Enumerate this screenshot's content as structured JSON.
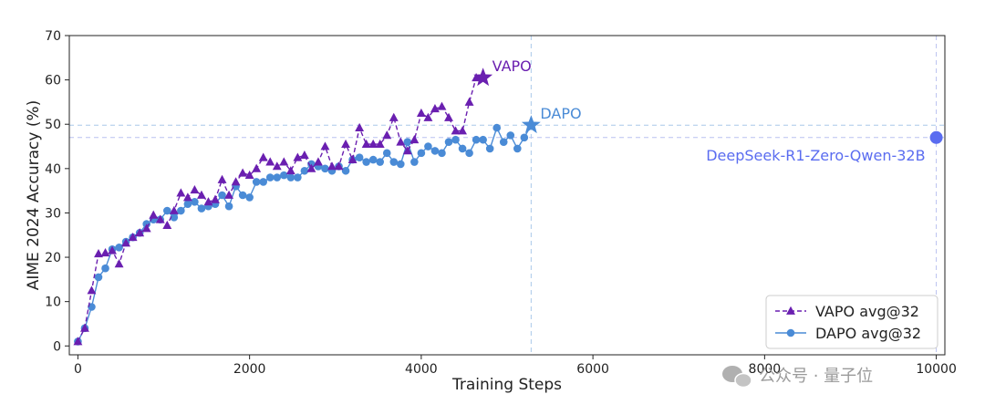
{
  "chart_data": {
    "type": "line",
    "xlabel": "Training Steps",
    "ylabel": "AIME 2024 Accuracy (%)",
    "xlim": [
      -100,
      10100
    ],
    "ylim": [
      -2,
      70
    ],
    "xticks": [
      0,
      2000,
      4000,
      6000,
      8000,
      10000
    ],
    "yticks": [
      0,
      10,
      20,
      30,
      40,
      50,
      60,
      70
    ],
    "grid": false,
    "legend_position": "bottom-right",
    "series": [
      {
        "name": "VAPO avg@32",
        "color": "#6a1fb0",
        "style": "dashed",
        "marker": "triangle",
        "x": [
          0,
          80,
          160,
          240,
          320,
          400,
          480,
          560,
          640,
          720,
          800,
          880,
          960,
          1040,
          1120,
          1200,
          1280,
          1360,
          1440,
          1520,
          1600,
          1680,
          1760,
          1840,
          1920,
          2000,
          2080,
          2160,
          2240,
          2320,
          2400,
          2480,
          2560,
          2640,
          2720,
          2800,
          2880,
          2960,
          3040,
          3120,
          3200,
          3280,
          3360,
          3440,
          3520,
          3600,
          3680,
          3760,
          3840,
          3920,
          4000,
          4080,
          4160,
          4240,
          4320,
          4400,
          4480,
          4560,
          4640,
          4720
        ],
        "y": [
          1,
          4,
          12.5,
          20.8,
          21,
          21.5,
          18.5,
          23.2,
          24.5,
          25.5,
          26.5,
          29.5,
          28.5,
          27.2,
          30.5,
          34.5,
          33.5,
          35.2,
          34,
          32.5,
          33,
          37.5,
          34,
          37,
          39,
          38.5,
          40,
          42.5,
          41.5,
          40.5,
          41.5,
          39.5,
          42.5,
          43,
          40,
          41.5,
          45,
          40.5,
          40.5,
          45.5,
          42,
          49.2,
          45.5,
          45.5,
          45.5,
          47.5,
          51.5,
          46,
          44,
          46.5,
          52.5,
          51.5,
          53.5,
          54,
          51.5,
          48.5,
          48.5,
          55,
          60.5,
          60.5
        ]
      },
      {
        "name": "DAPO avg@32",
        "color": "#4a8bd6",
        "style": "solid",
        "marker": "circle",
        "x": [
          0,
          80,
          160,
          240,
          320,
          400,
          480,
          560,
          640,
          720,
          800,
          880,
          960,
          1040,
          1120,
          1200,
          1280,
          1360,
          1440,
          1520,
          1600,
          1680,
          1760,
          1840,
          1920,
          2000,
          2080,
          2160,
          2240,
          2320,
          2400,
          2480,
          2560,
          2640,
          2720,
          2800,
          2880,
          2960,
          3040,
          3120,
          3200,
          3280,
          3360,
          3440,
          3520,
          3600,
          3680,
          3760,
          3840,
          3920,
          4000,
          4080,
          4160,
          4240,
          4320,
          4400,
          4480,
          4560,
          4640,
          4720,
          4800,
          4880,
          4960,
          5040,
          5120,
          5200,
          5280
        ],
        "y": [
          1,
          4,
          8.8,
          15.5,
          17.5,
          21.8,
          22.2,
          23.5,
          24.5,
          25.5,
          27.5,
          28.5,
          28.5,
          30.5,
          29,
          30.5,
          32,
          32.5,
          31,
          31.5,
          32,
          34,
          31.5,
          36,
          34,
          33.5,
          37,
          37,
          38,
          38,
          38.5,
          38,
          38,
          39.5,
          41,
          40.5,
          40,
          39.5,
          40.5,
          39.5,
          42,
          42.5,
          41.5,
          42,
          41.5,
          43.5,
          41.5,
          41,
          46,
          41.5,
          43.5,
          45,
          44,
          43.5,
          46,
          46.5,
          44.5,
          43.5,
          46.5,
          46.5,
          44.5,
          49.2,
          46,
          47.5,
          44.5,
          47,
          49.8
        ]
      }
    ],
    "annotations": {
      "vapo_label": "VAPO",
      "vapo_point": {
        "x": 4720,
        "y": 60.5
      },
      "dapo_label": "DAPO",
      "dapo_point": {
        "x": 5280,
        "y": 49.8
      },
      "deepseek_label": "DeepSeek-R1-Zero-Qwen-32B",
      "deepseek_point": {
        "x": 10000,
        "y": 47
      },
      "deepseek_color": "#5a6cf0"
    },
    "reference_lines": {
      "vertical": [
        5280,
        10000
      ],
      "horizontal": [
        49.8,
        47
      ]
    }
  },
  "watermark": {
    "text": "公众号 · 量子位"
  }
}
